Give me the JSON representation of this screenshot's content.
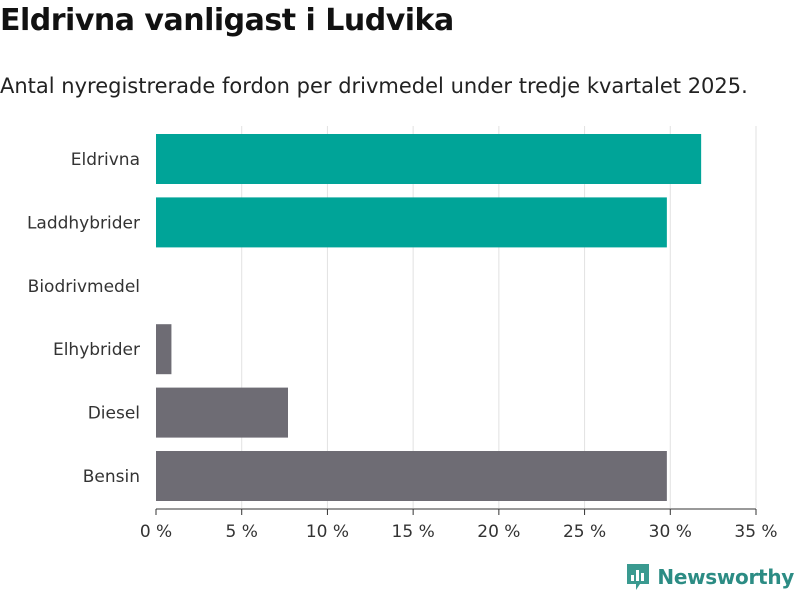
{
  "chart_data": {
    "type": "bar",
    "orientation": "horizontal",
    "title": "Eldrivna vanligast i Ludvika",
    "subtitle": "Antal nyregistrerade fordon per drivmedel under tredje kvartalet 2025.",
    "categories": [
      "Eldrivna",
      "Laddhybrider",
      "Biodrivmedel",
      "Elhybrider",
      "Diesel",
      "Bensin"
    ],
    "values": [
      31.8,
      29.8,
      0,
      0.9,
      7.7,
      29.8
    ],
    "bar_colors": [
      "#00a498",
      "#00a498",
      "#6e6c74",
      "#6e6c74",
      "#6e6c74",
      "#6e6c74"
    ],
    "xlim": [
      0,
      35
    ],
    "xticks": [
      "0 %",
      "5 %",
      "10 %",
      "15 %",
      "20 %",
      "25 %",
      "30 %",
      "35 %"
    ],
    "grid": true,
    "xlabel": "",
    "ylabel": ""
  },
  "brand": {
    "name": "Newsworthy",
    "icon": "newsworthy-logo-icon",
    "color": "#2c8c84"
  }
}
